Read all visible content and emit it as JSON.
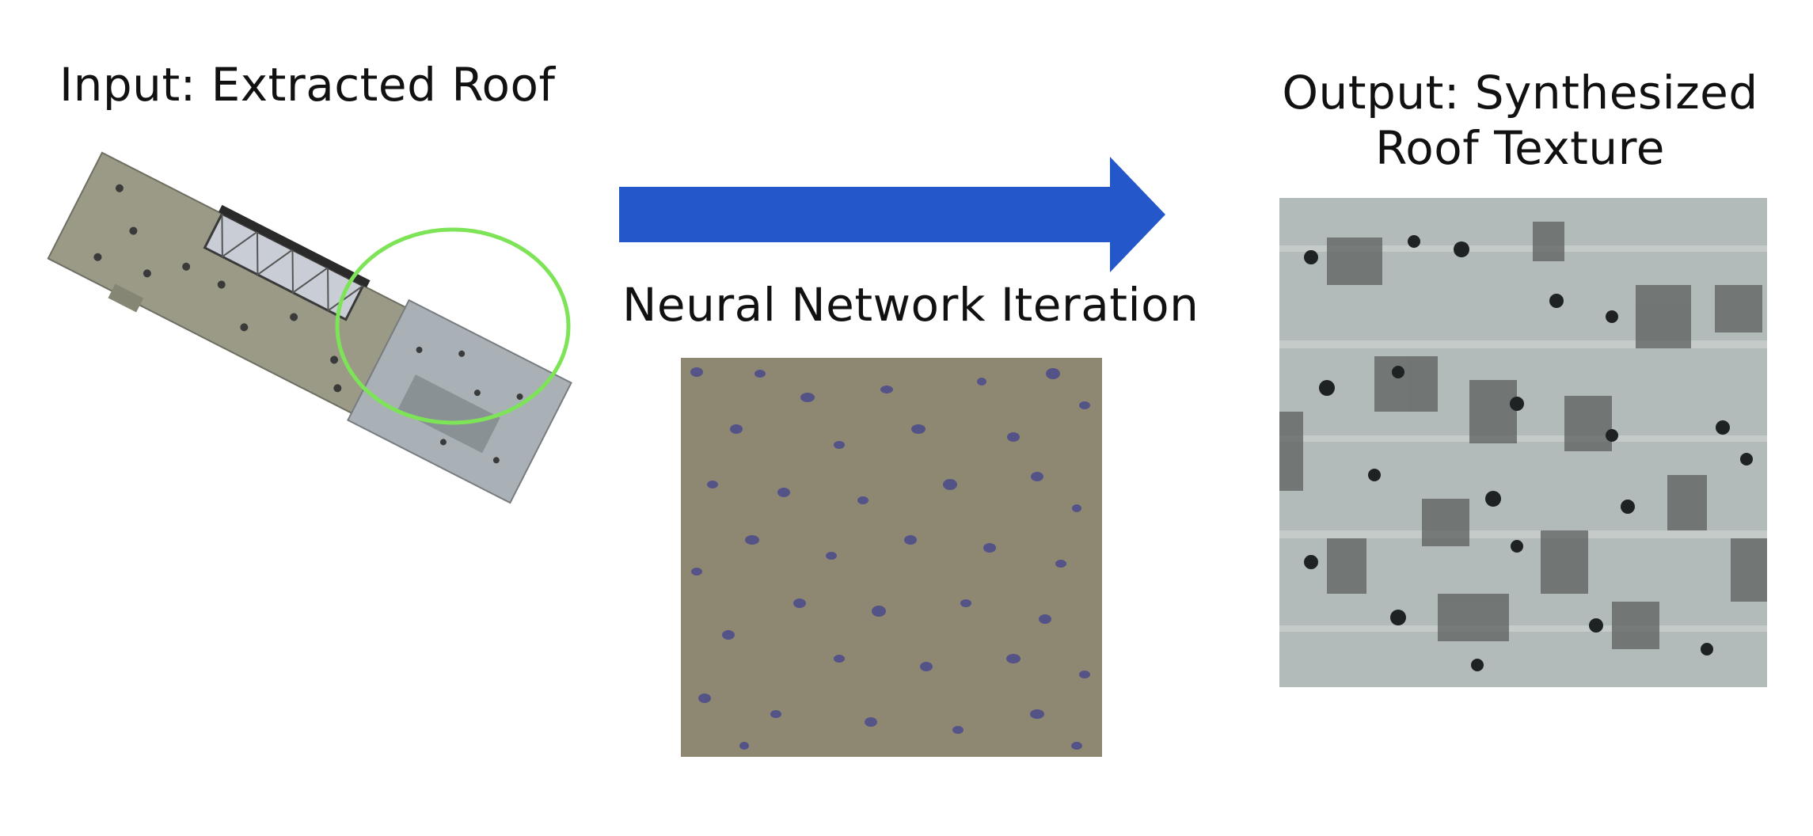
{
  "labels": {
    "input": "Input: Extracted Roof",
    "middle": "Neural Network Iteration",
    "output_line1": "Output: Synthesized",
    "output_line2": "Roof Texture"
  },
  "colors": {
    "arrow": "#2457c9",
    "highlight_ellipse": "#7de357",
    "nn_background": "#8e8872",
    "nn_spots": "#4b4a8c",
    "output_background": "#b3bbba",
    "output_marks": "#5c605d"
  }
}
